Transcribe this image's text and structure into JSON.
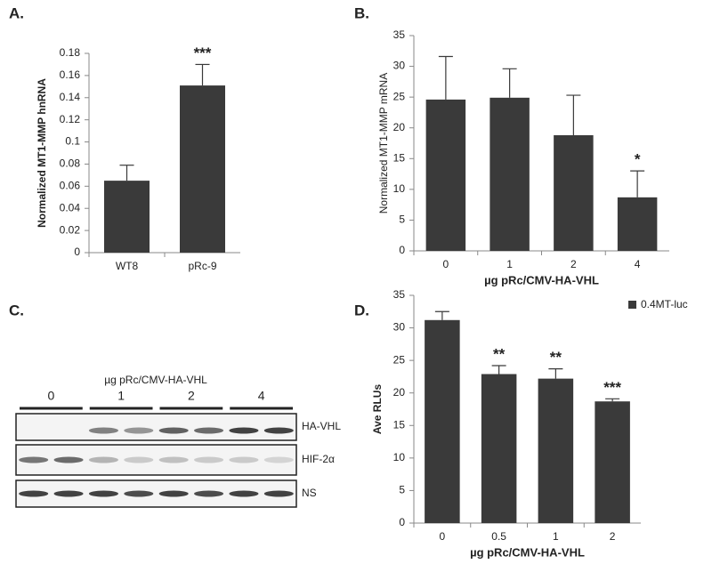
{
  "chart_data": [
    {
      "type": "bar",
      "label": "A.",
      "ylabel": "Normalized MT1-MMP hnRNA",
      "categories": [
        "WT8",
        "pRc-9"
      ],
      "values": [
        0.065,
        0.151
      ],
      "errors": [
        0.014,
        0.019
      ],
      "value_annotations": [
        null,
        "***"
      ],
      "color": "#3a3a3a",
      "ylim": [
        0,
        0.18
      ],
      "yticks": [
        0,
        0.02,
        0.04,
        0.06,
        0.08,
        0.1,
        0.12,
        0.14,
        0.16,
        0.18
      ]
    },
    {
      "type": "bar",
      "label": "B.",
      "ylabel": "Normalized MT1-MMP mRNA",
      "xlabel": "µg pRc/CMV-HA-VHL",
      "categories": [
        "0",
        "1",
        "2",
        "4"
      ],
      "values": [
        24.6,
        24.9,
        18.8,
        8.7
      ],
      "errors": [
        7.0,
        4.7,
        6.5,
        4.3
      ],
      "value_annotations": [
        null,
        null,
        null,
        "*"
      ],
      "color": "#3a3a3a",
      "ylim": [
        0,
        35
      ],
      "yticks": [
        0,
        5,
        10,
        15,
        20,
        25,
        30,
        35
      ]
    },
    {
      "type": "bar",
      "label": "D.",
      "ylabel": "Ave RLUs",
      "xlabel": "µg pRc/CMV-HA-VHL",
      "categories": [
        "0",
        "0.5",
        "1",
        "2"
      ],
      "series": [
        {
          "name": "0.4MT-luc",
          "color": "#3a3a3a",
          "values": [
            31.2,
            22.9,
            22.2,
            18.7
          ],
          "errors": [
            1.3,
            1.3,
            1.5,
            0.4
          ],
          "value_annotations": [
            null,
            "**",
            "**",
            "***"
          ]
        }
      ],
      "ylim": [
        0,
        35
      ],
      "yticks": [
        0,
        5,
        10,
        15,
        20,
        25,
        30,
        35
      ]
    }
  ],
  "blot": {
    "label": "C.",
    "title": "µg pRc/CMV-HA-VHL",
    "groups": [
      "0",
      "1",
      "2",
      "4"
    ],
    "rows": [
      "HA-VHL",
      "HIF-2α",
      "NS"
    ]
  }
}
